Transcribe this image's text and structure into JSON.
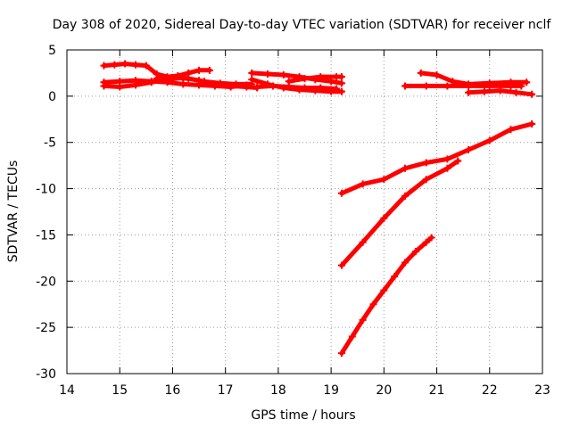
{
  "chart_data": {
    "type": "scatter",
    "title": "Day 308 of 2020, Sidereal Day-to-day VTEC variation (SDTVAR) for receiver nclf",
    "xlabel": "GPS time / hours",
    "ylabel": "SDTVAR / TECUs",
    "xlim": [
      14,
      23
    ],
    "ylim": [
      -30,
      5
    ],
    "x_ticks": [
      14,
      15,
      16,
      17,
      18,
      19,
      20,
      21,
      22,
      23
    ],
    "y_ticks": [
      5,
      0,
      -5,
      -10,
      -15,
      -20,
      -25,
      -30
    ],
    "grid": true,
    "marker_color": "#ff0000",
    "series": [
      {
        "x": [
          14.7,
          14.9,
          15.1,
          15.3,
          15.5,
          15.7,
          15.9,
          16.1,
          16.3,
          16.5,
          16.7
        ],
        "y": [
          3.3,
          3.4,
          3.5,
          3.4,
          3.3,
          2.4,
          2.1,
          2.2,
          2.5,
          2.8,
          2.8
        ]
      },
      {
        "x": [
          14.7,
          15.0,
          15.3,
          15.6,
          15.9,
          16.2,
          16.5,
          16.8,
          17.1,
          17.4
        ],
        "y": [
          1.5,
          1.6,
          1.7,
          1.6,
          1.5,
          1.3,
          1.2,
          1.1,
          1.0,
          1.2
        ]
      },
      {
        "x": [
          14.7,
          15.0,
          15.3,
          15.6,
          15.9,
          16.2,
          16.5,
          16.8,
          17.1,
          17.4,
          17.6
        ],
        "y": [
          1.1,
          1.0,
          1.2,
          1.5,
          1.8,
          2.0,
          1.7,
          1.3,
          1.1,
          1.0,
          0.9
        ]
      },
      {
        "x": [
          15.7,
          16.0,
          16.3,
          16.6,
          16.9,
          17.2,
          17.5
        ],
        "y": [
          1.9,
          2.0,
          1.9,
          1.6,
          1.4,
          1.3,
          1.3
        ]
      },
      {
        "x": [
          17.5,
          17.8,
          18.1,
          18.4,
          18.7,
          19.0,
          19.2
        ],
        "y": [
          2.5,
          2.4,
          2.3,
          2.1,
          1.8,
          1.6,
          1.4
        ]
      },
      {
        "x": [
          17.5,
          17.8,
          18.1,
          18.4,
          18.7,
          19.0,
          19.2
        ],
        "y": [
          1.8,
          1.3,
          0.9,
          0.7,
          0.6,
          0.5,
          0.5
        ]
      },
      {
        "x": [
          18.2,
          18.5,
          18.8,
          19.1,
          19.2
        ],
        "y": [
          1.6,
          1.9,
          2.1,
          2.1,
          2.1
        ]
      },
      {
        "x": [
          17.6,
          17.9,
          18.2,
          18.5,
          18.8,
          19.1
        ],
        "y": [
          1.0,
          1.1,
          1.0,
          0.9,
          0.9,
          0.8
        ]
      },
      {
        "x": [
          20.4,
          20.8,
          21.2,
          21.6,
          22.0,
          22.4,
          22.6
        ],
        "y": [
          1.1,
          1.1,
          1.1,
          1.1,
          1.1,
          1.1,
          1.1
        ]
      },
      {
        "x": [
          20.7,
          21.0,
          21.3,
          21.6,
          22.0,
          22.4,
          22.7
        ],
        "y": [
          2.5,
          2.3,
          1.6,
          1.3,
          1.4,
          1.5,
          1.5
        ]
      },
      {
        "x": [
          21.6,
          21.9,
          22.2,
          22.5,
          22.8
        ],
        "y": [
          0.4,
          0.5,
          0.6,
          0.4,
          0.2
        ]
      },
      {
        "x": [
          19.2,
          19.6,
          20.0,
          20.4,
          20.8,
          21.2,
          21.6,
          22.0,
          22.4,
          22.8
        ],
        "y": [
          -10.5,
          -9.5,
          -9.0,
          -7.8,
          -7.2,
          -6.8,
          -5.8,
          -4.8,
          -3.6,
          -3.0
        ]
      },
      {
        "x": [
          19.2,
          19.6,
          20.0,
          20.4,
          20.8,
          21.2,
          21.4
        ],
        "y": [
          -18.3,
          -15.8,
          -13.2,
          -10.8,
          -9.0,
          -7.8,
          -7.0
        ]
      },
      {
        "x": [
          19.2,
          19.4,
          19.6,
          19.8,
          20.0,
          20.2,
          20.4,
          20.6,
          20.8,
          20.9
        ],
        "y": [
          -27.8,
          -26.0,
          -24.2,
          -22.5,
          -21.0,
          -19.5,
          -18.0,
          -16.8,
          -15.8,
          -15.3
        ]
      }
    ]
  }
}
